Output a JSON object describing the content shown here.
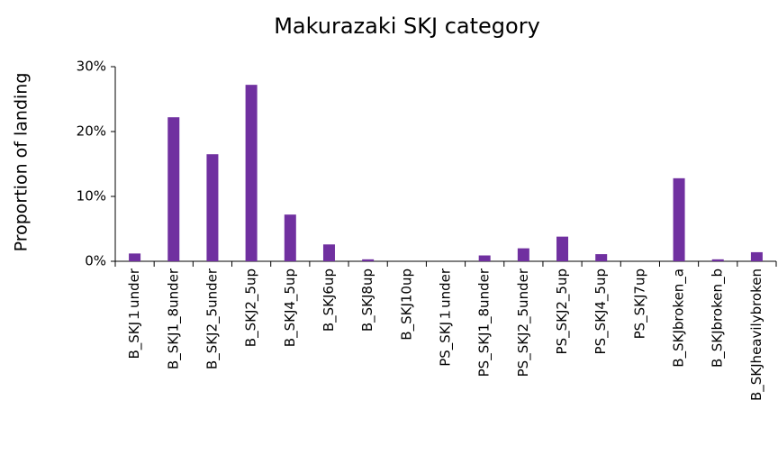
{
  "chart_data": {
    "type": "bar",
    "title": "Makurazaki SKJ category",
    "y_label": "Proportion of landing",
    "categories": [
      "B_SKJ１under",
      "B_SKJ1_8under",
      "B_SKJ2_5under",
      "B_SKJ2_5up",
      "B_SKJ4_5up",
      "B_SKJ6up",
      "B_SKJ8up",
      "B_SKJ10up",
      "PS_SKJ１under",
      "PS_SKJ1_8under",
      "PS_SKJ2_5under",
      "PS_SKJ2_5up",
      "PS_SKJ4_5up",
      "PS_SKJ7up",
      "B_SKJbroken_a",
      "B_SKJbroken_b",
      "B_SKJheavilybroken"
    ],
    "values": [
      1.2,
      22.2,
      16.5,
      27.2,
      7.2,
      2.6,
      0.3,
      0,
      0,
      0.9,
      2.0,
      3.8,
      1.1,
      0,
      12.8,
      0.3,
      1.4
    ],
    "color": "#7030a0",
    "ylim": [
      0,
      30
    ],
    "yticks": [
      {
        "value": 0,
        "label": "0%"
      },
      {
        "value": 10,
        "label": "10%"
      },
      {
        "value": 20,
        "label": "20%"
      },
      {
        "value": 30,
        "label": "30%"
      }
    ],
    "grid": false
  }
}
